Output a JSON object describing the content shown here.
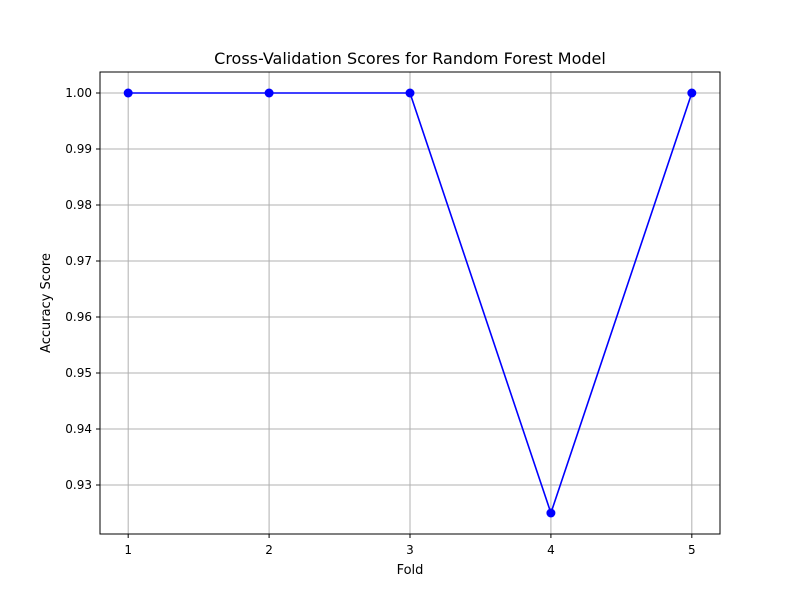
{
  "chart_data": {
    "type": "line",
    "title": "Cross-Validation Scores for Random Forest Model",
    "xlabel": "Fold",
    "ylabel": "Accuracy Score",
    "x": [
      1,
      2,
      3,
      4,
      5
    ],
    "x_tick_labels": [
      "1",
      "2",
      "3",
      "4",
      "5"
    ],
    "series": [
      {
        "values": [
          1.0,
          1.0,
          1.0,
          0.925,
          1.0
        ],
        "color": "#0000ff",
        "marker": "circle"
      }
    ],
    "y_ticks": [
      0.93,
      0.94,
      0.95,
      0.96,
      0.97,
      0.98,
      0.99,
      1.0
    ],
    "y_tick_labels": [
      "0.93",
      "0.94",
      "0.95",
      "0.96",
      "0.97",
      "0.98",
      "0.99",
      "1.00"
    ],
    "xlim": [
      0.8,
      5.2
    ],
    "ylim": [
      0.92125,
      1.00375
    ],
    "grid": true,
    "grid_color": "#b0b0b0",
    "axis_color": "#000000"
  }
}
